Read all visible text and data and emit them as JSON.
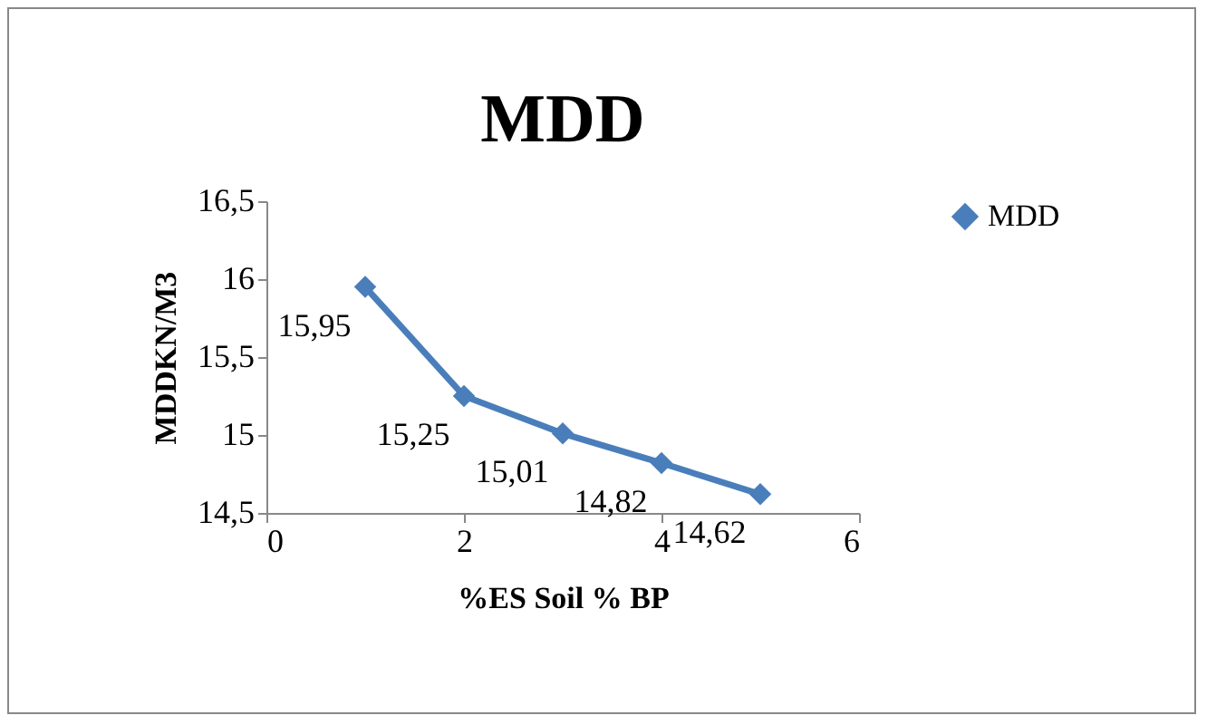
{
  "chart_data": {
    "type": "line",
    "title": "MDD",
    "xlabel": "%ES Soil   % BP",
    "ylabel": "MDDKN/M3",
    "x": [
      1,
      2,
      3,
      4,
      5
    ],
    "series": [
      {
        "name": "MDD",
        "color": "#4a7ebb",
        "values": [
          15.95,
          15.25,
          15.01,
          14.82,
          14.62
        ],
        "value_labels": [
          "15,95",
          "15,25",
          "15,01",
          "14,82",
          "14,62"
        ]
      }
    ],
    "xlim": [
      0,
      6
    ],
    "xticks": [
      0,
      2,
      4,
      6
    ],
    "ylim": [
      14.5,
      16.5
    ],
    "yticks": [
      {
        "value": 14.5,
        "label": "14,5"
      },
      15,
      {
        "value": 15.5,
        "label": "15,5"
      },
      16,
      {
        "value": 16.5,
        "label": "16,5"
      }
    ],
    "grid": false,
    "legend": "right",
    "marker": "diamond",
    "line_style": "solid"
  }
}
